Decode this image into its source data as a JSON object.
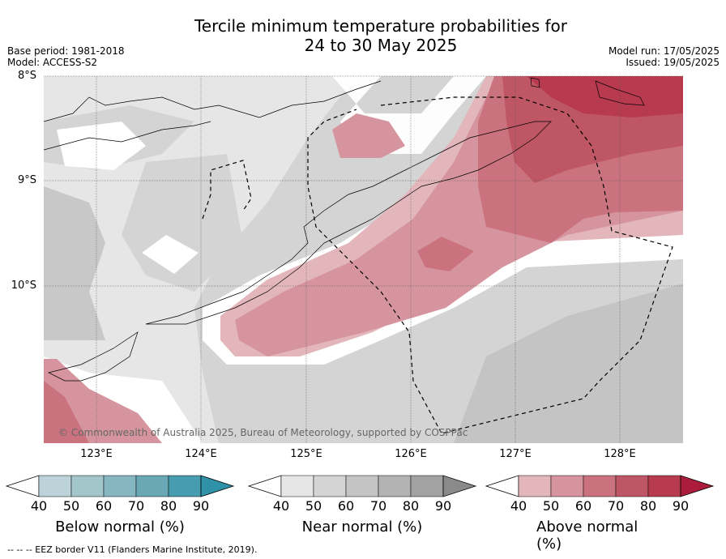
{
  "title_line1": "Tercile minimum temperature probabilities for",
  "title_line2": "24 to 30 May 2025",
  "base_period": "Base period: 1981-2018",
  "model": "Model: ACCESS-S2",
  "model_run": "Model run: 17/05/2025",
  "issued": "Issued: 19/05/2025",
  "credit": "© Commonwealth of Australia 2025, Bureau of Meteorology, supported by COSPPac",
  "lat_labels": [
    "8°S",
    "9°S",
    "10°S"
  ],
  "lon_labels": [
    "123°E",
    "124°E",
    "125°E",
    "126°E",
    "127°E",
    "128°E"
  ],
  "colorbars": [
    {
      "label": "Below normal (%)",
      "ticks": [
        "40",
        "50",
        "60",
        "70",
        "80",
        "90"
      ],
      "colors": [
        "#bcd3da",
        "#a3c6cb",
        "#86b6c0",
        "#69a8b4",
        "#479daf",
        "#2f92a8"
      ]
    },
    {
      "label": "Near normal (%)",
      "ticks": [
        "40",
        "50",
        "60",
        "70",
        "80",
        "90"
      ],
      "colors": [
        "#e6e6e6",
        "#d4d4d4",
        "#c4c4c4",
        "#b3b3b3",
        "#a2a2a2",
        "#8a8a8a"
      ]
    },
    {
      "label": "Above normal (%)",
      "ticks": [
        "40",
        "50",
        "60",
        "70",
        "80",
        "90"
      ],
      "colors": [
        "#e3b6bc",
        "#d6959e",
        "#ca737e",
        "#bf5665",
        "#b83a4e",
        "#aa1c3a"
      ]
    }
  ],
  "footer": "--  --  -- EEZ border V11 (Flanders Marine Institute, 2019)."
}
